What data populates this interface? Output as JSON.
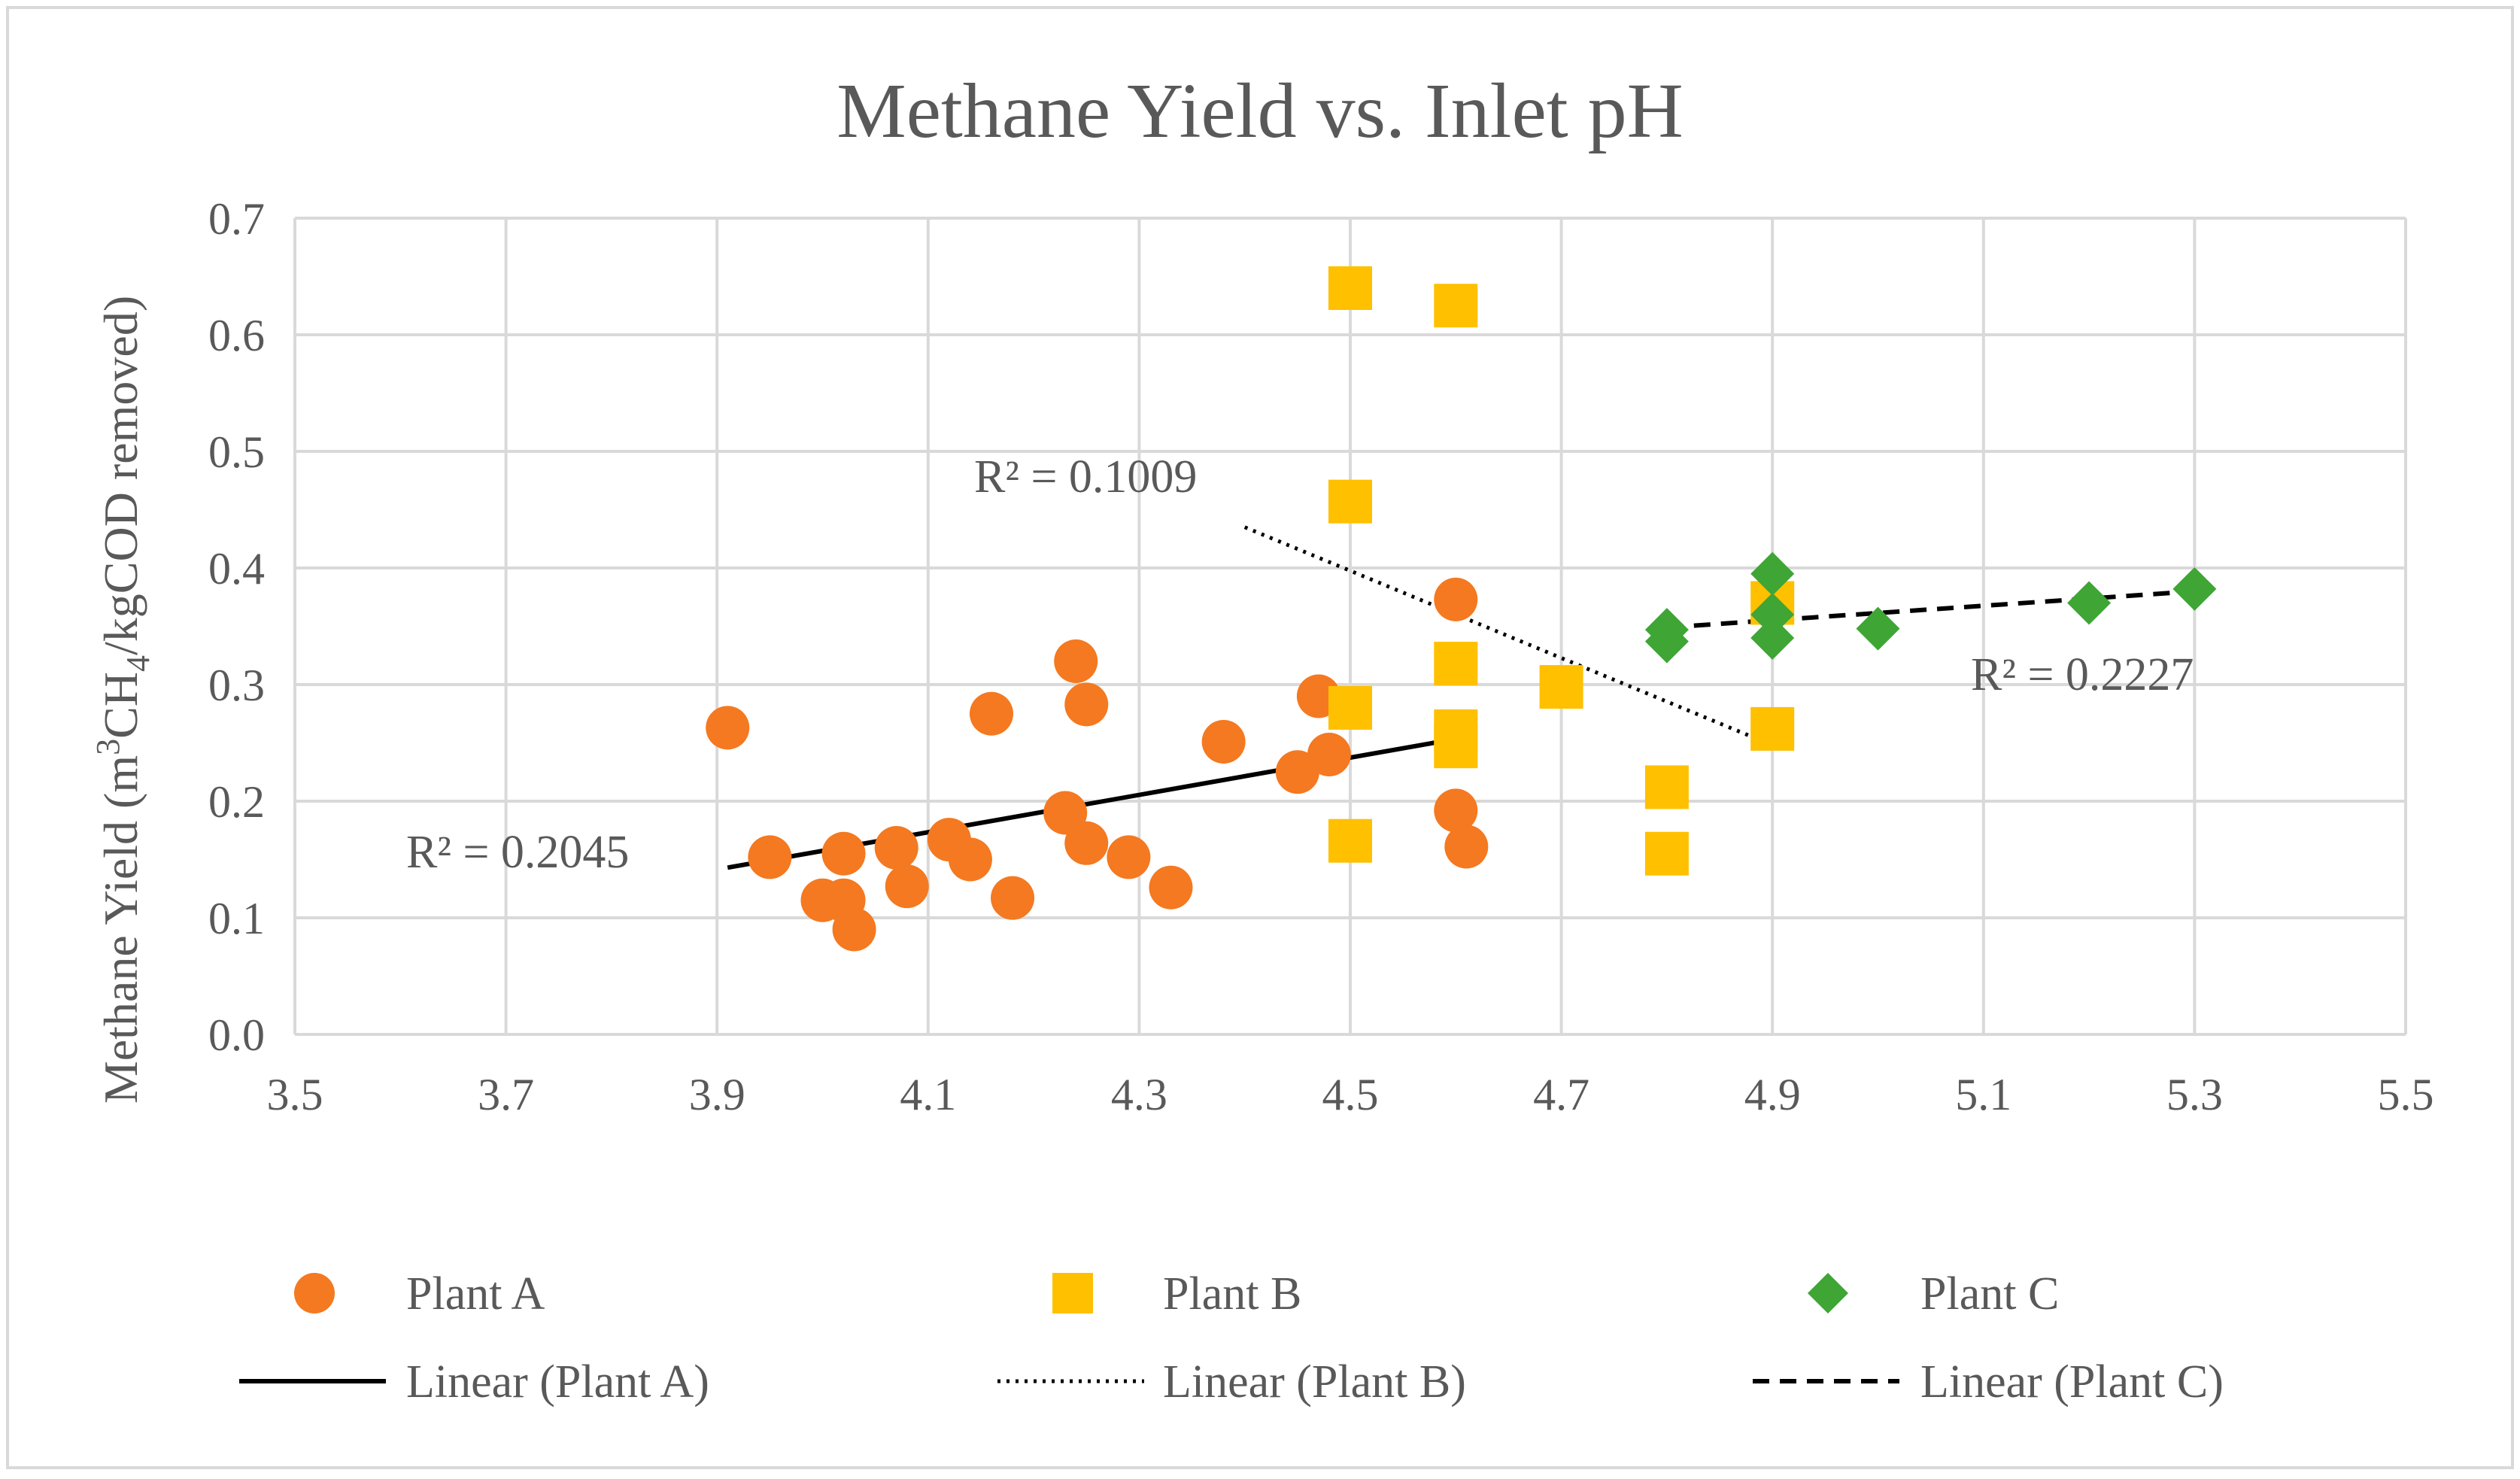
{
  "chart_data": {
    "type": "scatter",
    "title": "Methane Yield vs. Inlet pH",
    "xlabel": "",
    "ylabel_parts": [
      "Methane Yield (m",
      "3",
      "CH",
      "4",
      "/kgCOD removed)"
    ],
    "xlim": [
      3.5,
      5.5
    ],
    "ylim": [
      0.0,
      0.7
    ],
    "xticks": [
      "3.5",
      "3.7",
      "3.9",
      "4.1",
      "4.3",
      "4.5",
      "4.7",
      "4.9",
      "5.1",
      "5.3",
      "5.5"
    ],
    "yticks": [
      "0.0",
      "0.1",
      "0.2",
      "0.3",
      "0.4",
      "0.5",
      "0.6",
      "0.7"
    ],
    "grid": true,
    "legend_position": "bottom",
    "colors": {
      "plant_a": "#F47920",
      "plant_b": "#FFC000",
      "plant_c": "#3FA535",
      "trend": "#000000",
      "grid": "#D9D9D9",
      "text": "#595959"
    },
    "series": [
      {
        "name": "Plant A",
        "marker": "circle",
        "x": [
          3.91,
          3.95,
          4.0,
          4.02,
          4.02,
          4.03,
          4.07,
          4.08,
          4.12,
          4.14,
          4.16,
          4.18,
          4.23,
          4.24,
          4.25,
          4.25,
          4.29,
          4.33,
          4.38,
          4.45,
          4.47,
          4.48,
          4.6,
          4.6,
          4.61
        ],
        "y": [
          0.263,
          0.152,
          0.115,
          0.115,
          0.155,
          0.09,
          0.16,
          0.127,
          0.167,
          0.15,
          0.275,
          0.117,
          0.19,
          0.32,
          0.283,
          0.164,
          0.152,
          0.126,
          0.251,
          0.225,
          0.29,
          0.24,
          0.373,
          0.192,
          0.161
        ]
      },
      {
        "name": "Plant B",
        "marker": "square",
        "x": [
          4.5,
          4.6,
          4.5,
          4.9,
          4.6,
          4.5,
          4.7,
          4.6,
          4.6,
          4.9,
          4.8,
          4.5,
          4.8
        ],
        "y": [
          0.64,
          0.625,
          0.457,
          0.37,
          0.318,
          0.28,
          0.298,
          0.26,
          0.247,
          0.262,
          0.212,
          0.166,
          0.155
        ]
      },
      {
        "name": "Plant C",
        "marker": "diamond",
        "x": [
          4.8,
          4.8,
          4.9,
          4.9,
          4.9,
          5.0,
          5.2,
          5.3
        ],
        "y": [
          0.347,
          0.337,
          0.395,
          0.36,
          0.34,
          0.348,
          0.37,
          0.382
        ]
      }
    ],
    "trendlines": [
      {
        "name": "Linear (Plant A)",
        "style": "solid",
        "x": [
          3.91,
          4.61
        ],
        "y": [
          0.143,
          0.255
        ],
        "r2_label": "R² = 0.2045"
      },
      {
        "name": "Linear (Plant B)",
        "style": "dotted",
        "x": [
          4.4,
          4.9
        ],
        "y": [
          0.435,
          0.248
        ],
        "r2_label": "R² = 0.1009"
      },
      {
        "name": "Linear (Plant C)",
        "style": "dashed",
        "x": [
          4.8,
          5.3
        ],
        "y": [
          0.349,
          0.38
        ],
        "r2_label": "R² = 0.2227"
      }
    ]
  }
}
